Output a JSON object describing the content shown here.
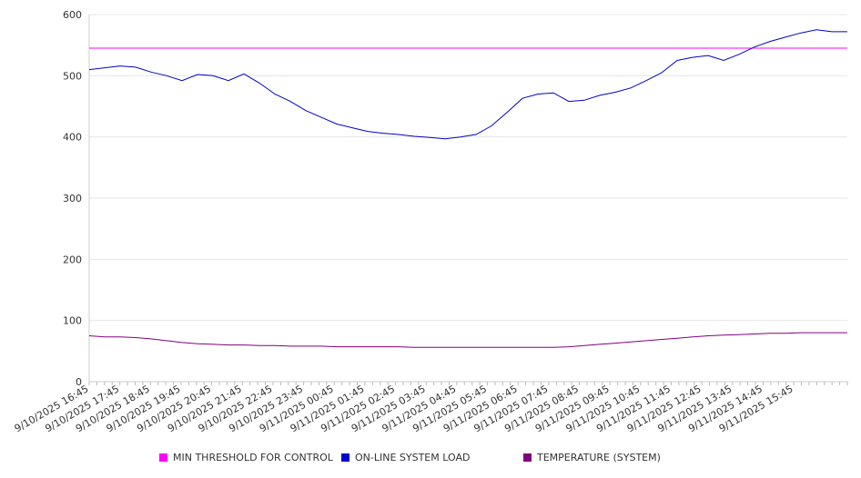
{
  "chart_data": {
    "type": "line",
    "title": "",
    "xlabel": "",
    "ylabel": "",
    "ylim": [
      0,
      600
    ],
    "yticks": [
      0,
      100,
      200,
      300,
      400,
      500,
      600
    ],
    "grid": true,
    "legend_position": "bottom",
    "x_tick_labels": [
      "9/10/2025 16:45",
      "9/10/2025 17:45",
      "9/10/2025 18:45",
      "9/10/2025 19:45",
      "9/10/2025 20:45",
      "9/10/2025 21:45",
      "9/10/2025 22:45",
      "9/10/2025 23:45",
      "9/11/2025 00:45",
      "9/11/2025 01:45",
      "9/11/2025 02:45",
      "9/11/2025 03:45",
      "9/11/2025 04:45",
      "9/11/2025 05:45",
      "9/11/2025 06:45",
      "9/11/2025 07:45",
      "9/11/2025 08:45",
      "9/11/2025 09:45",
      "9/11/2025 10:45",
      "9/11/2025 11:45",
      "9/11/2025 12:45",
      "9/11/2025 13:45",
      "9/11/2025 14:45",
      "9/11/2025 15:45"
    ],
    "x_minutes_per_point": 15,
    "series": [
      {
        "name": "MIN THRESHOLD FOR CONTROL",
        "color": "#ff00ff",
        "values": [
          545,
          545
        ]
      },
      {
        "name": "ON-LINE SYSTEM LOAD",
        "color": "#0000cc",
        "values": [
          510,
          513,
          516,
          514,
          506,
          500,
          492,
          502,
          500,
          492,
          503,
          488,
          470,
          458,
          443,
          432,
          421,
          415,
          409,
          406,
          404,
          401,
          399,
          397,
          400,
          404,
          418,
          440,
          463,
          470,
          472,
          458,
          460,
          468,
          473,
          480,
          492,
          505,
          525,
          530,
          533,
          525,
          535,
          547,
          556,
          563,
          570,
          575,
          572,
          572
        ]
      },
      {
        "name": "TEMPERATURE (SYSTEM)",
        "color": "#800080",
        "values": [
          75,
          73,
          73,
          72,
          70,
          67,
          64,
          62,
          61,
          60,
          60,
          59,
          59,
          58,
          58,
          58,
          57,
          57,
          57,
          57,
          57,
          56,
          56,
          56,
          56,
          56,
          56,
          56,
          56,
          56,
          56,
          57,
          59,
          61,
          63,
          65,
          67,
          69,
          71,
          73,
          75,
          76,
          77,
          78,
          79,
          79,
          80,
          80,
          80,
          80
        ]
      }
    ]
  }
}
